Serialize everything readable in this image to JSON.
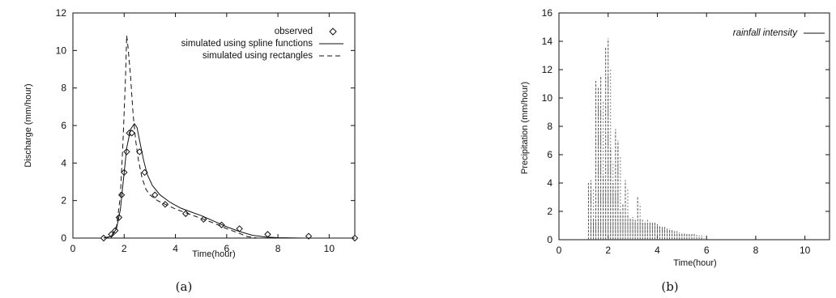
{
  "chart_data": [
    {
      "type": "line",
      "caption": "(a)",
      "xlabel": "Time(hour)",
      "ylabel": "Discharge (mm/hour)",
      "xlim": [
        0,
        11
      ],
      "ylim": [
        0,
        12
      ],
      "xticks": [
        0,
        2,
        4,
        6,
        8,
        10
      ],
      "yticks": [
        0,
        2,
        4,
        6,
        8,
        10,
        12
      ],
      "legend_position": "top-right",
      "series": [
        {
          "name": "observed",
          "style": "diamond-markers",
          "x": [
            1.2,
            1.5,
            1.65,
            1.8,
            1.9,
            2.0,
            2.1,
            2.2,
            2.3,
            2.6,
            2.8,
            3.2,
            3.6,
            4.4,
            5.1,
            5.8,
            6.5,
            7.6,
            9.2,
            11.0
          ],
          "y": [
            0.0,
            0.2,
            0.4,
            1.1,
            2.3,
            3.5,
            4.6,
            5.6,
            5.6,
            4.6,
            3.5,
            2.3,
            1.8,
            1.3,
            1.0,
            0.7,
            0.5,
            0.2,
            0.1,
            0.0
          ]
        },
        {
          "name": "simulated using spline functions",
          "style": "solid",
          "x": [
            1.2,
            1.5,
            1.7,
            1.85,
            2.0,
            2.1,
            2.25,
            2.4,
            2.5,
            2.6,
            2.75,
            2.9,
            3.1,
            3.4,
            3.8,
            4.2,
            4.6,
            5.0,
            5.5,
            6.0,
            6.5,
            7.0,
            7.5,
            8.0,
            9.0,
            10.0,
            11.0
          ],
          "y": [
            0.0,
            0.1,
            0.5,
            1.5,
            3.5,
            4.8,
            5.8,
            6.1,
            5.9,
            5.2,
            4.2,
            3.4,
            2.8,
            2.3,
            1.9,
            1.6,
            1.4,
            1.2,
            0.9,
            0.6,
            0.35,
            0.15,
            0.06,
            0.02,
            0.0,
            0.0,
            0.0
          ]
        },
        {
          "name": "simulated using rectangles",
          "style": "dashed",
          "x": [
            1.2,
            1.5,
            1.7,
            1.85,
            1.95,
            2.05,
            2.1,
            2.15,
            2.25,
            2.35,
            2.45,
            2.55,
            2.7,
            2.85,
            3.0,
            3.3,
            3.6,
            4.0,
            4.5,
            5.0,
            5.5,
            6.0,
            6.5,
            6.8,
            7.2,
            8.0,
            9.0,
            11.0
          ],
          "y": [
            0.0,
            0.1,
            0.6,
            2.2,
            5.0,
            8.5,
            10.8,
            10.2,
            8.6,
            6.6,
            5.2,
            4.2,
            3.2,
            2.6,
            2.3,
            2.0,
            1.8,
            1.55,
            1.3,
            1.05,
            0.8,
            0.5,
            0.25,
            0.08,
            0.0,
            0.0,
            0.0,
            0.0
          ]
        }
      ]
    },
    {
      "type": "bar",
      "caption": "(b)",
      "xlabel": "Time(hour)",
      "ylabel": "Precipitation (mm/hour)",
      "xlim": [
        0,
        11
      ],
      "ylim": [
        0,
        16
      ],
      "xticks": [
        0,
        2,
        4,
        6,
        8,
        10
      ],
      "yticks": [
        0,
        2,
        4,
        6,
        8,
        10,
        12,
        14,
        16
      ],
      "legend_position": "top-right",
      "series": [
        {
          "name": "rainfall intensity",
          "x": [
            1.2,
            1.3,
            1.4,
            1.5,
            1.6,
            1.7,
            1.8,
            1.9,
            2.0,
            2.1,
            2.2,
            2.3,
            2.4,
            2.5,
            2.6,
            2.7,
            2.8,
            2.9,
            3.0,
            3.1,
            3.2,
            3.3,
            3.4,
            3.5,
            3.6,
            3.7,
            3.8,
            3.9,
            4.0,
            4.1,
            4.2,
            4.3,
            4.4,
            4.5,
            4.6,
            4.7,
            4.8,
            4.9,
            5.0,
            5.1,
            5.2,
            5.3,
            5.4,
            5.5,
            5.6,
            5.7,
            5.8
          ],
          "values": [
            4.0,
            4.2,
            1.5,
            11.2,
            10.8,
            11.5,
            4.5,
            13.6,
            14.2,
            6.5,
            4.0,
            7.8,
            7.0,
            2.0,
            2.5,
            4.2,
            1.8,
            1.5,
            1.6,
            1.4,
            3.0,
            1.4,
            1.4,
            1.3,
            1.4,
            1.3,
            1.2,
            1.2,
            1.1,
            1.0,
            0.9,
            0.9,
            0.8,
            0.8,
            0.7,
            0.6,
            0.6,
            0.5,
            0.5,
            0.5,
            0.4,
            0.4,
            0.4,
            0.4,
            0.3,
            0.3,
            0.3
          ]
        }
      ]
    }
  ]
}
